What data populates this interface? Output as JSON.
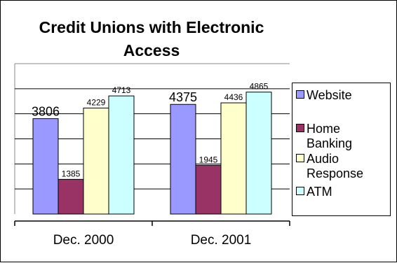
{
  "chart_data": {
    "type": "bar",
    "title": "Credit Unions with Electronic Access",
    "categories": [
      "Dec. 2000",
      "Dec. 2001"
    ],
    "series": [
      {
        "name": "Website",
        "values": [
          3806,
          4375
        ],
        "color": "#9999ff"
      },
      {
        "name": "Home Banking",
        "values": [
          1385,
          1945
        ],
        "color": "#993366"
      },
      {
        "name": "Audio Response",
        "values": [
          4229,
          4436
        ],
        "color": "#ffffcc"
      },
      {
        "name": "ATM",
        "values": [
          4713,
          4865
        ],
        "color": "#ccffff"
      }
    ],
    "ylim": [
      0,
      6000
    ],
    "grid": true,
    "legend_position": "right"
  }
}
